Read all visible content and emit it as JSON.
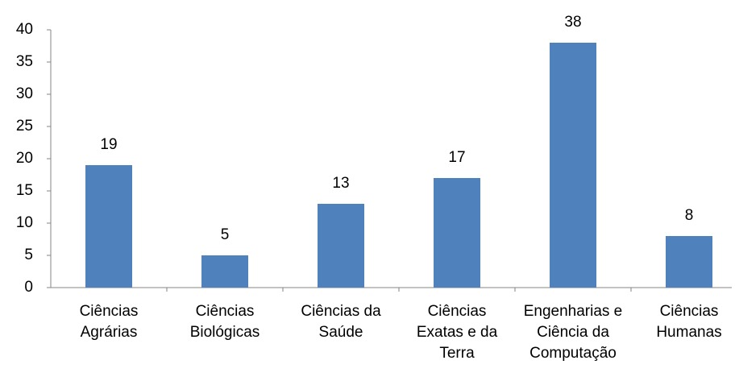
{
  "chart_data": {
    "type": "bar",
    "categories": [
      "Ciências Agrárias",
      "Ciências Biológicas",
      "Ciências da Saúde",
      "Ciências Exatas e da Terra",
      "Engenharias e Ciência da Computação",
      "Ciências Humanas"
    ],
    "values": [
      19,
      5,
      13,
      17,
      38,
      8
    ],
    "color": "#4f81bd",
    "ylim": [
      0,
      40
    ],
    "yticks": [
      0,
      5,
      10,
      15,
      20,
      25,
      30,
      35,
      40
    ],
    "grid": false
  }
}
